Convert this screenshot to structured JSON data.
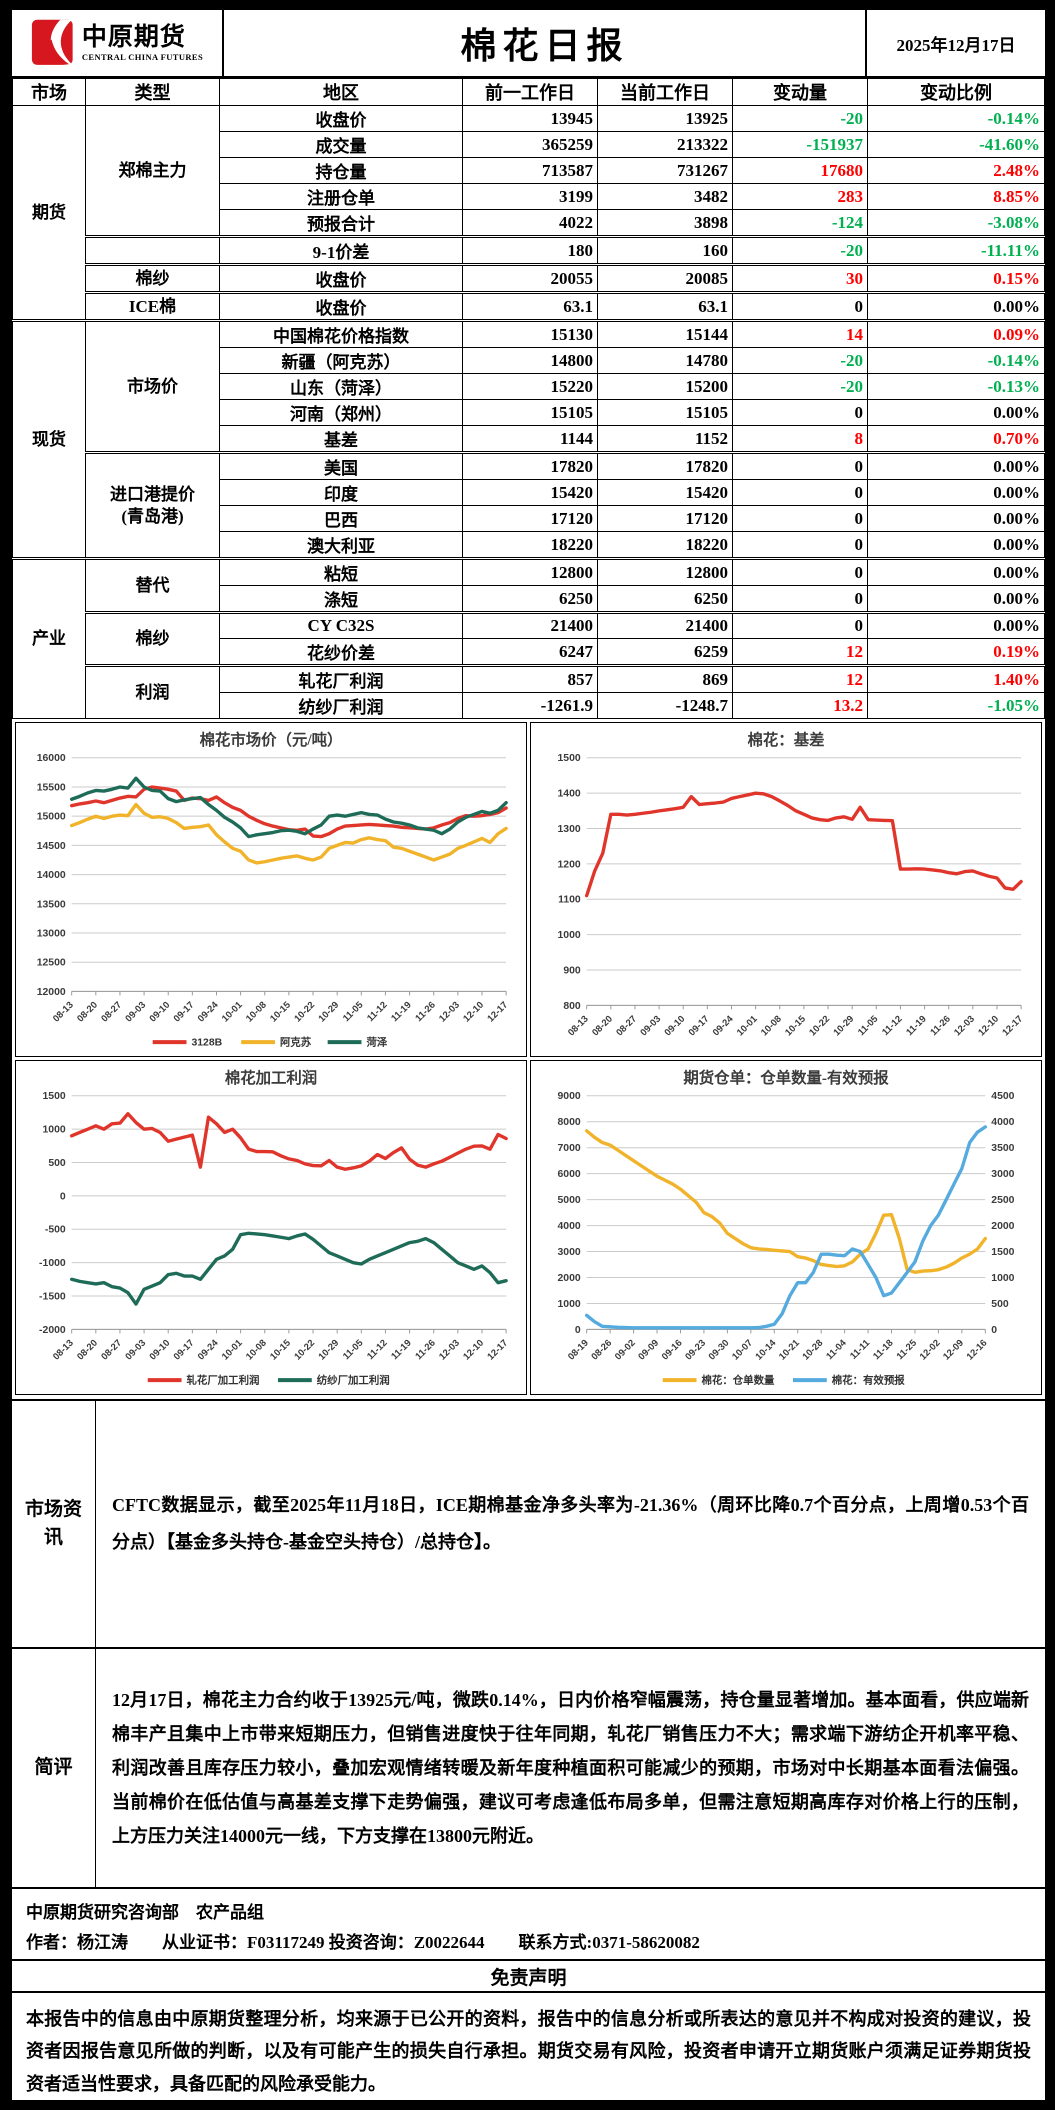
{
  "colors": {
    "up": "#ff0000",
    "dn": "#00b050",
    "grid": "#cbcbcb"
  },
  "header": {
    "logo_cn": "中原期货",
    "logo_en": "CENTRAL CHINA FUTURES",
    "title": "棉花日报",
    "date": "2025年12月17日"
  },
  "table": {
    "columns": [
      "市场",
      "类型",
      "地区",
      "前一工作日",
      "当前工作日",
      "变动量",
      "变动比例"
    ],
    "rows": [
      {
        "market": "期货",
        "market_span": 8,
        "type": "郑棉主力",
        "type_span": 5,
        "region": "收盘价",
        "prev": "13945",
        "curr": "13925",
        "chg": "-20",
        "pct": "-0.14%",
        "cd": "dn",
        "pd": "dn"
      },
      {
        "region": "成交量",
        "prev": "365259",
        "curr": "213322",
        "chg": "-151937",
        "pct": "-41.60%",
        "cd": "dn",
        "pd": "dn"
      },
      {
        "region": "持仓量",
        "prev": "713587",
        "curr": "731267",
        "chg": "17680",
        "pct": "2.48%",
        "cd": "up",
        "pd": "up"
      },
      {
        "region": "注册仓单",
        "prev": "3199",
        "curr": "3482",
        "chg": "283",
        "pct": "8.85%",
        "cd": "up",
        "pd": "up"
      },
      {
        "region": "预报合计",
        "prev": "4022",
        "curr": "3898",
        "chg": "-124",
        "pct": "-3.08%",
        "cd": "dn",
        "pd": "dn"
      },
      {
        "type": "",
        "type_span": 1,
        "region": "9-1价差",
        "prev": "180",
        "curr": "160",
        "chg": "-20",
        "pct": "-11.11%",
        "cd": "dn",
        "pd": "dn",
        "sep": true
      },
      {
        "type": "棉纱",
        "type_span": 1,
        "region": "收盘价",
        "prev": "20055",
        "curr": "20085",
        "chg": "30",
        "pct": "0.15%",
        "cd": "up",
        "pd": "up",
        "sep": true
      },
      {
        "type": "ICE棉",
        "type_span": 1,
        "region": "收盘价",
        "prev": "63.1",
        "curr": "63.1",
        "chg": "0",
        "pct": "0.00%",
        "cd": "flat",
        "pd": "flat",
        "sep": true
      },
      {
        "market": "现货",
        "market_span": 9,
        "type": "市场价",
        "type_span": 5,
        "region": "中国棉花价格指数",
        "prev": "15130",
        "curr": "15144",
        "chg": "14",
        "pct": "0.09%",
        "cd": "up",
        "pd": "up",
        "sep": true
      },
      {
        "region": "新疆（阿克苏）",
        "prev": "14800",
        "curr": "14780",
        "chg": "-20",
        "pct": "-0.14%",
        "cd": "dn",
        "pd": "dn"
      },
      {
        "region": "山东（菏泽）",
        "prev": "15220",
        "curr": "15200",
        "chg": "-20",
        "pct": "-0.13%",
        "cd": "dn",
        "pd": "dn"
      },
      {
        "region": "河南（郑州）",
        "prev": "15105",
        "curr": "15105",
        "chg": "0",
        "pct": "0.00%",
        "cd": "flat",
        "pd": "flat"
      },
      {
        "region": "基差",
        "prev": "1144",
        "curr": "1152",
        "chg": "8",
        "pct": "0.70%",
        "cd": "up",
        "pd": "up"
      },
      {
        "type_lines": [
          "进口港提价",
          "(青岛港)"
        ],
        "type_span": 4,
        "region": "美国",
        "prev": "17820",
        "curr": "17820",
        "chg": "0",
        "pct": "0.00%",
        "cd": "flat",
        "pd": "flat",
        "sep": true
      },
      {
        "region": "印度",
        "prev": "15420",
        "curr": "15420",
        "chg": "0",
        "pct": "0.00%",
        "cd": "flat",
        "pd": "flat"
      },
      {
        "region": "巴西",
        "prev": "17120",
        "curr": "17120",
        "chg": "0",
        "pct": "0.00%",
        "cd": "flat",
        "pd": "flat"
      },
      {
        "region": "澳大利亚",
        "prev": "18220",
        "curr": "18220",
        "chg": "0",
        "pct": "0.00%",
        "cd": "flat",
        "pd": "flat"
      },
      {
        "market": "产业",
        "market_span": 6,
        "type": "替代",
        "type_span": 2,
        "region": "粘短",
        "prev": "12800",
        "curr": "12800",
        "chg": "0",
        "pct": "0.00%",
        "cd": "flat",
        "pd": "flat",
        "sep": true
      },
      {
        "region": "涤短",
        "prev": "6250",
        "curr": "6250",
        "chg": "0",
        "pct": "0.00%",
        "cd": "flat",
        "pd": "flat"
      },
      {
        "type": "棉纱",
        "type_span": 2,
        "region": "CY C32S",
        "prev": "21400",
        "curr": "21400",
        "chg": "0",
        "pct": "0.00%",
        "cd": "flat",
        "pd": "flat",
        "sep": true
      },
      {
        "region": "花纱价差",
        "prev": "6247",
        "curr": "6259",
        "chg": "12",
        "pct": "0.19%",
        "cd": "up",
        "pd": "up"
      },
      {
        "type": "利润",
        "type_span": 2,
        "region": "轧花厂利润",
        "prev": "857",
        "curr": "869",
        "chg": "12",
        "pct": "1.40%",
        "cd": "up",
        "pd": "up",
        "sep": true
      },
      {
        "region": "纺纱厂利润",
        "prev": "-1261.9",
        "curr": "-1248.7",
        "chg": "13.2",
        "pct": "-1.05%",
        "cd": "up",
        "pd": "dn"
      }
    ]
  },
  "chart_data": [
    {
      "type": "line",
      "title": "棉花市场价（元/吨）",
      "legend": true,
      "x_labels": [
        "08-13",
        "08-20",
        "08-27",
        "09-03",
        "09-10",
        "09-17",
        "09-24",
        "10-01",
        "10-08",
        "10-15",
        "10-22",
        "10-29",
        "11-05",
        "11-12",
        "11-19",
        "11-26",
        "12-03",
        "12-10",
        "12-17"
      ],
      "left": {
        "min": 12000,
        "max": 16000,
        "step": 500
      },
      "right": null,
      "series": [
        {
          "name": "3128B",
          "color": "#e0352b",
          "axis": "left",
          "values": [
            15180,
            15210,
            15230,
            15260,
            15230,
            15270,
            15310,
            15340,
            15330,
            15460,
            15500,
            15480,
            15460,
            15430,
            15270,
            15310,
            15300,
            15270,
            15330,
            15230,
            15150,
            15100,
            15000,
            14930,
            14870,
            14830,
            14800,
            14770,
            14760,
            14780,
            14660,
            14650,
            14700,
            14780,
            14830,
            14840,
            14850,
            14860,
            14850,
            14840,
            14830,
            14810,
            14800,
            14790,
            14780,
            14800,
            14850,
            14890,
            14960,
            15010,
            15000,
            15010,
            15030,
            15060,
            15140
          ]
        },
        {
          "name": "阿克苏",
          "color": "#f0b32a",
          "axis": "left",
          "values": [
            14840,
            14890,
            14950,
            15000,
            14960,
            15000,
            15020,
            15010,
            15200,
            15050,
            14980,
            14990,
            14960,
            14890,
            14790,
            14810,
            14820,
            14850,
            14680,
            14560,
            14450,
            14400,
            14250,
            14200,
            14220,
            14250,
            14280,
            14300,
            14320,
            14280,
            14250,
            14300,
            14450,
            14500,
            14550,
            14540,
            14600,
            14630,
            14600,
            14580,
            14470,
            14450,
            14400,
            14350,
            14300,
            14250,
            14300,
            14350,
            14450,
            14500,
            14560,
            14620,
            14550,
            14700,
            14790
          ]
        },
        {
          "name": "菏泽",
          "color": "#1e6b58",
          "axis": "left",
          "values": [
            15290,
            15340,
            15400,
            15440,
            15430,
            15460,
            15500,
            15480,
            15650,
            15500,
            15440,
            15430,
            15300,
            15250,
            15280,
            15300,
            15320,
            15200,
            15100,
            14980,
            14900,
            14800,
            14650,
            14680,
            14700,
            14720,
            14750,
            14760,
            14740,
            14700,
            14780,
            14850,
            15000,
            15020,
            15000,
            15030,
            15060,
            15030,
            15020,
            14950,
            14900,
            14880,
            14850,
            14800,
            14780,
            14760,
            14700,
            14780,
            14900,
            14980,
            15030,
            15080,
            15050,
            15100,
            15230
          ]
        }
      ]
    },
    {
      "type": "line",
      "title": "棉花：基差",
      "legend": false,
      "x_labels": [
        "08-13",
        "08-20",
        "08-27",
        "09-03",
        "09-10",
        "09-17",
        "09-24",
        "10-01",
        "10-08",
        "10-15",
        "10-22",
        "10-29",
        "11-05",
        "11-12",
        "11-19",
        "11-26",
        "12-03",
        "12-10",
        "12-17"
      ],
      "left": {
        "min": 800,
        "max": 1500,
        "step": 100
      },
      "right": null,
      "series": [
        {
          "name": "基差",
          "color": "#e0352b",
          "axis": "left",
          "values": [
            1110,
            1180,
            1230,
            1340,
            1340,
            1338,
            1340,
            1343,
            1346,
            1350,
            1353,
            1356,
            1360,
            1390,
            1368,
            1370,
            1372,
            1375,
            1385,
            1390,
            1395,
            1400,
            1398,
            1390,
            1378,
            1365,
            1350,
            1340,
            1330,
            1325,
            1323,
            1330,
            1333,
            1326,
            1360,
            1325,
            1324,
            1323,
            1322,
            1185,
            1185,
            1186,
            1185,
            1183,
            1180,
            1175,
            1172,
            1178,
            1180,
            1172,
            1165,
            1160,
            1132,
            1128,
            1150
          ]
        }
      ]
    },
    {
      "type": "line",
      "title": "棉花加工利润",
      "legend": true,
      "x_labels": [
        "08-13",
        "08-20",
        "08-27",
        "09-03",
        "09-10",
        "09-17",
        "09-24",
        "10-01",
        "10-08",
        "10-15",
        "10-22",
        "10-29",
        "11-05",
        "11-12",
        "11-19",
        "11-26",
        "12-03",
        "12-10",
        "12-17"
      ],
      "left": {
        "min": -2000,
        "max": 1500,
        "step": 500
      },
      "right": null,
      "series": [
        {
          "name": "轧花厂加工利润",
          "color": "#e0352b",
          "axis": "left",
          "values": [
            900,
            950,
            1000,
            1050,
            1000,
            1080,
            1090,
            1230,
            1100,
            1000,
            1010,
            950,
            820,
            850,
            880,
            910,
            430,
            1180,
            1080,
            950,
            1000,
            870,
            700,
            665,
            665,
            660,
            600,
            555,
            530,
            480,
            455,
            450,
            530,
            430,
            400,
            420,
            450,
            520,
            620,
            560,
            650,
            720,
            550,
            460,
            430,
            480,
            520,
            580,
            640,
            700,
            745,
            750,
            700,
            920,
            860
          ]
        },
        {
          "name": "纺纱厂加工利润",
          "color": "#1e6b58",
          "axis": "left",
          "values": [
            -1250,
            -1280,
            -1300,
            -1320,
            -1300,
            -1360,
            -1380,
            -1450,
            -1620,
            -1400,
            -1350,
            -1300,
            -1180,
            -1160,
            -1200,
            -1200,
            -1250,
            -1100,
            -950,
            -900,
            -800,
            -580,
            -560,
            -570,
            -580,
            -600,
            -620,
            -640,
            -600,
            -570,
            -650,
            -750,
            -850,
            -900,
            -950,
            -1000,
            -1020,
            -950,
            -900,
            -850,
            -800,
            -750,
            -700,
            -680,
            -640,
            -700,
            -800,
            -900,
            -1000,
            -1050,
            -1100,
            -1050,
            -1150,
            -1300,
            -1270
          ]
        }
      ]
    },
    {
      "type": "line",
      "title": "期货仓单：仓单数量-有效预报",
      "legend": true,
      "x_labels": [
        "08-19",
        "08-26",
        "09-02",
        "09-09",
        "09-16",
        "09-23",
        "09-30",
        "10-07",
        "10-14",
        "10-21",
        "10-28",
        "11-04",
        "11-11",
        "11-18",
        "11-25",
        "12-02",
        "12-09",
        "12-16"
      ],
      "left": {
        "min": 0,
        "max": 9000,
        "step": 1000
      },
      "right": {
        "min": 0,
        "max": 4500,
        "step": 500
      },
      "series": [
        {
          "name": "棉花：仓单数量",
          "color": "#f0b32a",
          "axis": "left",
          "values": [
            7650,
            7400,
            7200,
            7100,
            6900,
            6700,
            6500,
            6300,
            6100,
            5900,
            5750,
            5600,
            5400,
            5150,
            4900,
            4500,
            4350,
            4100,
            3700,
            3500,
            3300,
            3150,
            3100,
            3080,
            3050,
            3020,
            3000,
            2800,
            2750,
            2650,
            2500,
            2460,
            2420,
            2450,
            2600,
            2900,
            3100,
            3700,
            4400,
            4420,
            3500,
            2300,
            2200,
            2250,
            2260,
            2300,
            2400,
            2550,
            2750,
            2900,
            3100,
            3500
          ]
        },
        {
          "name": "棉花：有效预报",
          "color": "#55aade",
          "axis": "right",
          "values": [
            270,
            150,
            60,
            50,
            40,
            35,
            30,
            30,
            30,
            30,
            30,
            30,
            30,
            30,
            30,
            30,
            30,
            30,
            30,
            30,
            30,
            30,
            35,
            60,
            100,
            300,
            650,
            900,
            900,
            1100,
            1450,
            1450,
            1430,
            1420,
            1550,
            1500,
            1250,
            1000,
            650,
            700,
            900,
            1100,
            1300,
            1700,
            2000,
            2200,
            2500,
            2800,
            3100,
            3600,
            3800,
            3900
          ]
        }
      ]
    }
  ],
  "sections": {
    "zixun_label": "市场资讯",
    "zixun_text": "CFTC数据显示，截至2025年11月18日，ICE期棉基金净多头率为-21.36%（周环比降0.7个百分点，上周增0.53个百分点）【基金多头持仓-基金空头持仓）/总持仓】。",
    "jianping_label": "简评",
    "jianping_text": "12月17日，棉花主力合约收于13925元/吨，微跌0.14%，日内价格窄幅震荡，持仓量显著增加。基本面看，供应端新棉丰产且集中上市带来短期压力，但销售进度快于往年同期，轧花厂销售压力不大；需求端下游纺企开机率平稳、利润改善且库存压力较小，叠加宏观情绪转暖及新年度种植面积可能减少的预期，市场对中长期基本面看法偏强。当前棉价在低估值与高基差支撑下走势偏强，建议可考虑逢低布局多单，但需注意短期高库存对价格上行的压制，上方压力关注14000元一线，下方支撑在13800元附近。"
  },
  "footer": {
    "dept_line": "中原期货研究咨询部　农产品组",
    "author_line": "作者：杨江涛　　从业证书：F03117249 投资咨询：Z0022644　　联系方式:0371-58620082",
    "disclaimer_title": "免责声明",
    "disclaimer_text": "本报告中的信息由中原期货整理分析，均来源于已公开的资料，报告中的信息分析或所表达的意见并不构成对投资的建议，投资者因报告意见所做的判断，以及有可能产生的损失自行承担。期货交易有风险，投资者申请开立期货账户须满足证券期货投资者适当性要求，具备匹配的风险承受能力。"
  }
}
